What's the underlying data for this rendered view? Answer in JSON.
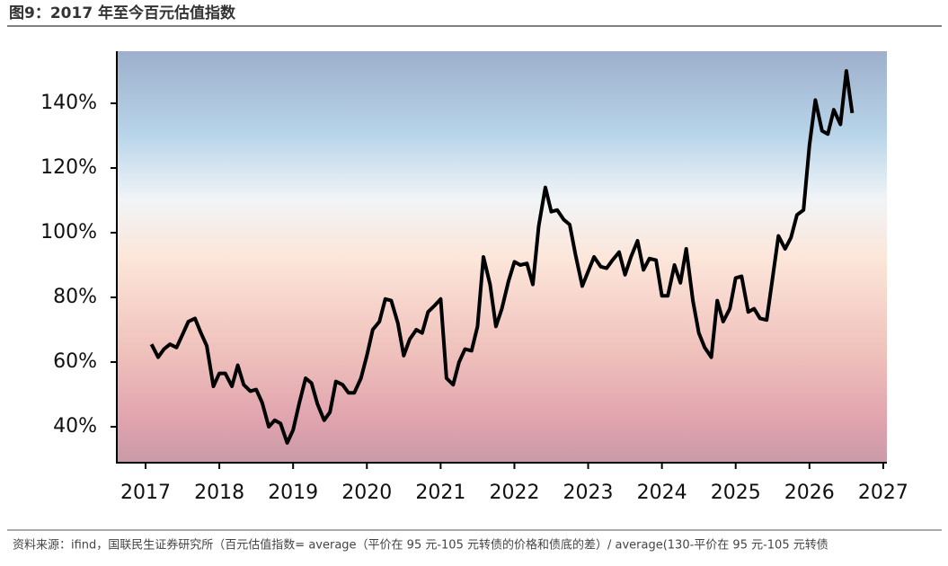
{
  "chart_data": {
    "type": "line",
    "title": "图9：2017 年至今百元估值指数",
    "source": "资料来源：ifind，国联民生证券研究所（百元估值指数= average（平价在 95 元-105 元转债的价格和债底的差）/ average(130-平价在 95 元-105 元转债",
    "color": "#000000",
    "x": [
      2017.08,
      2017.17,
      2017.25,
      2017.33,
      2017.42,
      2017.5,
      2017.58,
      2017.67,
      2017.75,
      2017.83,
      2017.92,
      2018.0,
      2018.08,
      2018.17,
      2018.25,
      2018.33,
      2018.42,
      2018.5,
      2018.58,
      2018.67,
      2018.75,
      2018.83,
      2018.92,
      2019.0,
      2019.08,
      2019.17,
      2019.25,
      2019.33,
      2019.42,
      2019.5,
      2019.58,
      2019.67,
      2019.75,
      2019.83,
      2019.92,
      2020.0,
      2020.08,
      2020.17,
      2020.25,
      2020.33,
      2020.42,
      2020.5,
      2020.58,
      2020.67,
      2020.75,
      2020.83,
      2020.92,
      2021.0,
      2021.08,
      2021.17,
      2021.25,
      2021.33,
      2021.42,
      2021.5,
      2021.58,
      2021.67,
      2021.75,
      2021.83,
      2021.92,
      2022.0,
      2022.08,
      2022.17,
      2022.25,
      2022.33,
      2022.42,
      2022.5,
      2022.58,
      2022.67,
      2022.75,
      2022.83,
      2022.92,
      2023.0,
      2023.08,
      2023.17,
      2023.25,
      2023.33,
      2023.42,
      2023.5,
      2023.58,
      2023.67,
      2023.75,
      2023.83,
      2023.92,
      2024.0,
      2024.08,
      2024.17,
      2024.25,
      2024.33,
      2024.42,
      2024.5,
      2024.58,
      2024.67,
      2024.75,
      2024.83,
      2024.92,
      2025.0,
      2025.08,
      2025.17,
      2025.25,
      2025.33,
      2025.42,
      2025.5,
      2025.58,
      2025.67,
      2025.75,
      2025.83,
      2025.92,
      2026.0,
      2026.08,
      2026.17,
      2026.25,
      2026.33,
      2026.42,
      2026.5,
      2026.58
    ],
    "values": [
      65.5,
      61.5,
      64,
      65.5,
      64.5,
      68.5,
      72.5,
      73.5,
      69,
      65,
      52.5,
      56.5,
      56.5,
      52.5,
      59,
      53,
      51,
      51.5,
      47.5,
      40,
      42,
      41,
      35,
      39,
      47,
      55,
      53.5,
      47,
      42,
      44.5,
      54,
      53,
      50.5,
      50.5,
      55,
      62,
      70,
      72.5,
      79.5,
      79,
      72,
      62,
      67,
      70,
      69,
      75.5,
      77.5,
      79.5,
      55,
      53,
      60,
      64,
      63.5,
      71,
      92.5,
      84,
      71,
      76.5,
      85,
      91,
      90,
      90.5,
      84,
      102,
      114,
      106.5,
      107,
      104,
      102.5,
      93,
      83.5,
      88,
      92.5,
      89.5,
      89,
      91.5,
      94,
      87,
      92.5,
      97.5,
      88.5,
      92,
      91.5,
      80.5,
      80.5,
      90,
      84.5,
      95,
      79,
      69,
      64.5,
      61.5,
      79,
      72.5,
      76.5,
      86,
      86.5,
      75.5,
      76.5,
      73.5,
      73,
      86,
      99,
      95,
      98.5,
      105.5,
      107,
      127,
      141,
      131.5,
      130.5,
      138,
      133.5,
      150,
      137
    ],
    "xlim": [
      2016.61,
      2027.05
    ],
    "xticks": [
      2017,
      2018,
      2019,
      2020,
      2021,
      2022,
      2023,
      2024,
      2025,
      2026,
      2027
    ],
    "ylim": [
      28.9,
      156.1
    ],
    "yticks": [
      {
        "value": 40,
        "label": "40%"
      },
      {
        "value": 60,
        "label": "60%"
      },
      {
        "value": 80,
        "label": "80%"
      },
      {
        "value": 100,
        "label": "100%"
      },
      {
        "value": 120,
        "label": "120%"
      },
      {
        "value": 140,
        "label": "140%"
      }
    ]
  }
}
